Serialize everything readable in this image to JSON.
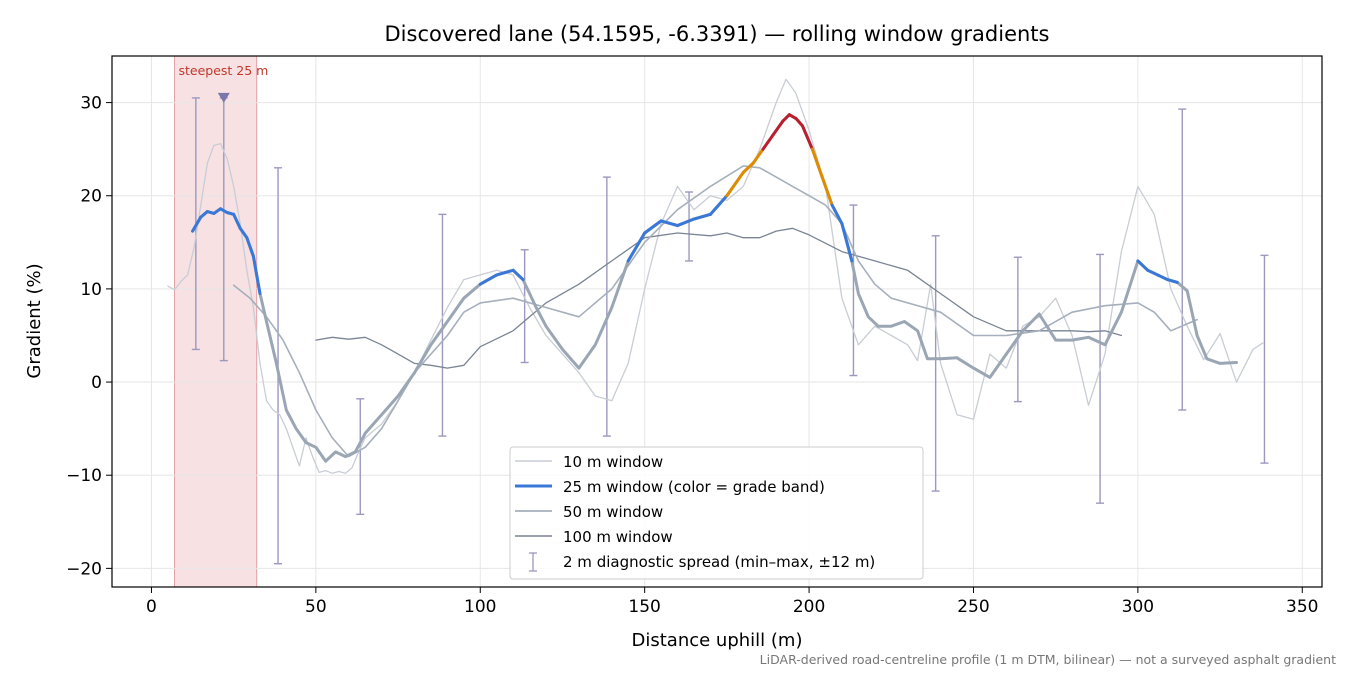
{
  "chart_data": {
    "type": "line",
    "title": "Discovered lane (54.1595, -6.3391) — rolling window gradients",
    "xlabel": "Distance uphill (m)",
    "ylabel": "Gradient (%)",
    "xlim": [
      -12,
      356
    ],
    "ylim": [
      -22,
      35
    ],
    "xticks": [
      0,
      50,
      100,
      150,
      200,
      250,
      300,
      350
    ],
    "yticks": [
      -20,
      -10,
      0,
      10,
      20,
      30
    ],
    "xtick_labels": [
      "0",
      "50",
      "100",
      "150",
      "200",
      "250",
      "300",
      "350"
    ],
    "ytick_labels": [
      "−20",
      "−10",
      "0",
      "10",
      "20",
      "30"
    ],
    "grid": true,
    "legend_position": "lower-center",
    "footnote": "LiDAR-derived road-centreline profile (1 m DTM, bilinear) — not a surveyed asphalt gradient",
    "steepest": {
      "label": "steepest 25 m",
      "x_start": 7,
      "x_end": 32,
      "marker_x": 22,
      "marker_y": 30.5,
      "color": "#e8a8b0"
    },
    "grade_bands": [
      {
        "min": -100,
        "max": 20,
        "color": "#3a78d8"
      },
      {
        "min": 20,
        "max": 25,
        "color": "#e08c00"
      },
      {
        "min": 25,
        "max": 100,
        "color": "#bb1f2d"
      }
    ],
    "series": [
      {
        "name": "10 m window",
        "color": "#c8cdd5",
        "width": 1.3,
        "x": [
          5,
          7,
          9,
          11,
          13,
          15,
          17,
          19,
          21,
          23,
          25,
          27,
          29,
          31,
          33,
          35,
          37,
          39,
          41,
          43,
          45,
          47,
          49,
          51,
          53,
          55,
          57,
          59,
          61,
          63,
          65,
          70,
          75,
          80,
          85,
          90,
          95,
          100,
          105,
          110,
          115,
          120,
          125,
          130,
          135,
          140,
          145,
          150,
          155,
          160,
          165,
          170,
          175,
          180,
          185,
          190,
          193,
          196,
          200,
          205,
          210,
          215,
          220,
          225,
          230,
          233,
          237,
          240,
          245,
          250,
          255,
          260,
          265,
          270,
          275,
          280,
          285,
          290,
          295,
          300,
          305,
          310,
          315,
          320,
          325,
          330,
          335,
          338
        ],
        "y": [
          10.3,
          9.9,
          10.8,
          11.5,
          14.5,
          19,
          23.5,
          25.4,
          25.6,
          24,
          21,
          17,
          12,
          8,
          2,
          -2,
          -3,
          -3.5,
          -5,
          -7,
          -9,
          -6,
          -8,
          -9.7,
          -9.5,
          -9.8,
          -9.6,
          -9.8,
          -9.2,
          -7.5,
          -6,
          -4.5,
          -2,
          1,
          4.5,
          8,
          11,
          11.5,
          12,
          11.5,
          8,
          5,
          3,
          1,
          -1.5,
          -2,
          2,
          10,
          17,
          21,
          18.5,
          20,
          19.5,
          21,
          25,
          30,
          32.5,
          31,
          27,
          21,
          9,
          4,
          6,
          5,
          4,
          2.3,
          10.5,
          2,
          -3.5,
          -4,
          3,
          1.5,
          6,
          7,
          9,
          5,
          -2.5,
          3,
          14,
          21,
          18,
          10,
          6,
          2.4,
          5.2,
          0,
          3.5,
          4.2
        ]
      },
      {
        "name": "25 m window (color = grade band)",
        "color": "#9aa6b3",
        "width": 3.0,
        "banded": true,
        "x": [
          12.5,
          15,
          17,
          19,
          21,
          23,
          25,
          27,
          29,
          31,
          33,
          35,
          38,
          41,
          44,
          47,
          50,
          53,
          56,
          59,
          62,
          65,
          70,
          75,
          80,
          85,
          90,
          95,
          100,
          105,
          110,
          113,
          117,
          120,
          125,
          130,
          135,
          140,
          145,
          150,
          155,
          160,
          165,
          170,
          175,
          180,
          183,
          186,
          189,
          192,
          194,
          196,
          198,
          201,
          204,
          207,
          210,
          213,
          215,
          218,
          221,
          225,
          229,
          233,
          236,
          240,
          245,
          250,
          255,
          260,
          265,
          270,
          275,
          280,
          285,
          290,
          295,
          300,
          303,
          306,
          309,
          312,
          315,
          318,
          321,
          325,
          330
        ],
        "y": [
          16.2,
          17.7,
          18.3,
          18.1,
          18.6,
          18.2,
          18,
          16.5,
          15.5,
          13.5,
          9.5,
          6.5,
          2,
          -3,
          -5,
          -6.5,
          -7,
          -8.5,
          -7.5,
          -8,
          -7.5,
          -5.5,
          -3.5,
          -1.5,
          1,
          4,
          6.5,
          9,
          10.5,
          11.5,
          12,
          11,
          8,
          6,
          3.5,
          1.5,
          4,
          8,
          13,
          16,
          17.3,
          16.8,
          17.5,
          18,
          20,
          22.5,
          23.5,
          25,
          26.5,
          28,
          28.7,
          28.3,
          27.5,
          25,
          22,
          19,
          17,
          13,
          9.5,
          7,
          6,
          6,
          6.5,
          5.5,
          2.5,
          2.5,
          2.6,
          1.5,
          0.5,
          3,
          5.5,
          7.3,
          4.5,
          4.5,
          4.8,
          4,
          7.5,
          13,
          12,
          11.5,
          11,
          10.7,
          9.8,
          5,
          2.5,
          2,
          2.1
        ]
      },
      {
        "name": "50 m window",
        "color": "#a6afbc",
        "width": 1.6,
        "x": [
          25,
          30,
          35,
          40,
          45,
          50,
          55,
          60,
          65,
          70,
          75,
          80,
          85,
          90,
          95,
          100,
          110,
          120,
          130,
          140,
          150,
          160,
          170,
          180,
          185,
          190,
          195,
          200,
          205,
          210,
          215,
          220,
          225,
          230,
          240,
          250,
          260,
          270,
          280,
          290,
          300,
          305,
          310,
          318
        ],
        "y": [
          10.4,
          9,
          7,
          4.5,
          1,
          -3,
          -6,
          -8,
          -7,
          -5,
          -2,
          1,
          3,
          5,
          7.5,
          8.5,
          9,
          8,
          7,
          10,
          15,
          18.5,
          21,
          23.2,
          23,
          22,
          21,
          20,
          19,
          17,
          13,
          10.5,
          9,
          8.5,
          7.5,
          5,
          5,
          5.5,
          7.5,
          8.2,
          8.5,
          7.5,
          5.5,
          6.7
        ]
      },
      {
        "name": "100 m window",
        "color": "#7a8494",
        "width": 1.3,
        "x": [
          50,
          55,
          60,
          65,
          70,
          75,
          80,
          85,
          90,
          95,
          100,
          110,
          120,
          130,
          140,
          150,
          160,
          170,
          175,
          180,
          185,
          190,
          195,
          200,
          210,
          220,
          230,
          240,
          250,
          260,
          270,
          280,
          285,
          290,
          295
        ],
        "y": [
          4.5,
          4.8,
          4.6,
          4.8,
          4,
          3,
          2,
          1.8,
          1.5,
          1.8,
          3.8,
          5.5,
          8.5,
          10.5,
          13,
          15.5,
          16,
          15.7,
          16,
          15.5,
          15.5,
          16.2,
          16.5,
          15.8,
          14,
          13,
          12,
          9.5,
          7,
          5.5,
          5.5,
          5.5,
          5.4,
          5.5,
          5
        ]
      }
    ],
    "error_bars": {
      "name": "2 m diagnostic spread (min–max, ±12 m)",
      "color": "#9c98bf",
      "items": [
        {
          "x": 13.5,
          "lo": 3.5,
          "hi": 30.5
        },
        {
          "x": 22,
          "lo": 2.3,
          "hi": 30.5
        },
        {
          "x": 38.5,
          "lo": -19.5,
          "hi": 23
        },
        {
          "x": 63.5,
          "lo": -14.2,
          "hi": -1.8
        },
        {
          "x": 88.5,
          "lo": -5.8,
          "hi": 18
        },
        {
          "x": 113.5,
          "lo": 2.1,
          "hi": 14.2
        },
        {
          "x": 138.5,
          "lo": -5.8,
          "hi": 22
        },
        {
          "x": 163.5,
          "lo": 13,
          "hi": 20.4
        },
        {
          "x": 213.5,
          "lo": 0.7,
          "hi": 19
        },
        {
          "x": 238.5,
          "lo": -11.7,
          "hi": 15.7
        },
        {
          "x": 263.5,
          "lo": -2.1,
          "hi": 13.4
        },
        {
          "x": 288.5,
          "lo": -13,
          "hi": 13.7
        },
        {
          "x": 313.5,
          "lo": -3,
          "hi": 29.3
        },
        {
          "x": 338.5,
          "lo": -8.7,
          "hi": 13.6
        }
      ]
    }
  }
}
